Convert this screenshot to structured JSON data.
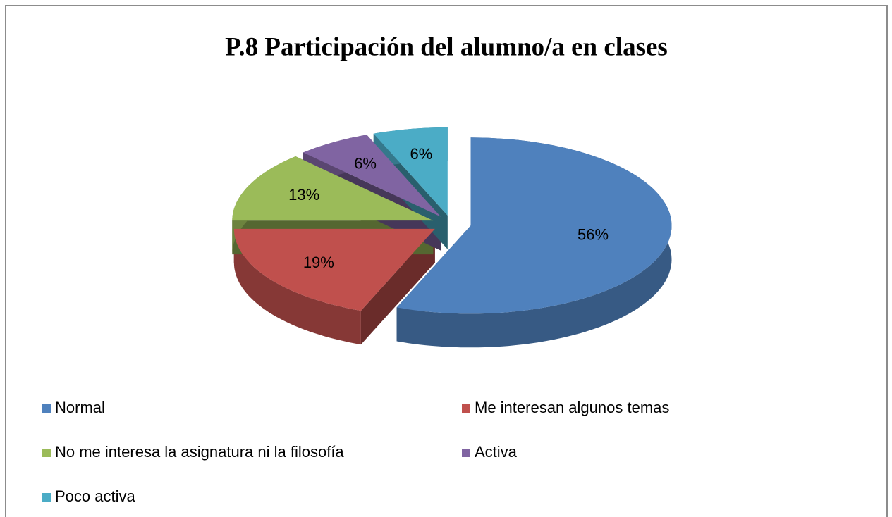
{
  "chart_data": {
    "type": "pie",
    "title": "P.8 Participación del alumno/a en clases",
    "categories": [
      "Normal",
      "Me interesan algunos temas",
      "No me interesa la asignatura ni la filosofía",
      "Activa",
      "Poco activa"
    ],
    "values": [
      56,
      19,
      13,
      6,
      6
    ],
    "value_labels": [
      "56%",
      "19%",
      "13%",
      "6%",
      "6%"
    ],
    "colors": [
      "#4f81bd",
      "#c0504d",
      "#9bbb59",
      "#8064a2",
      "#4bacc6"
    ],
    "legend": "bottom"
  }
}
